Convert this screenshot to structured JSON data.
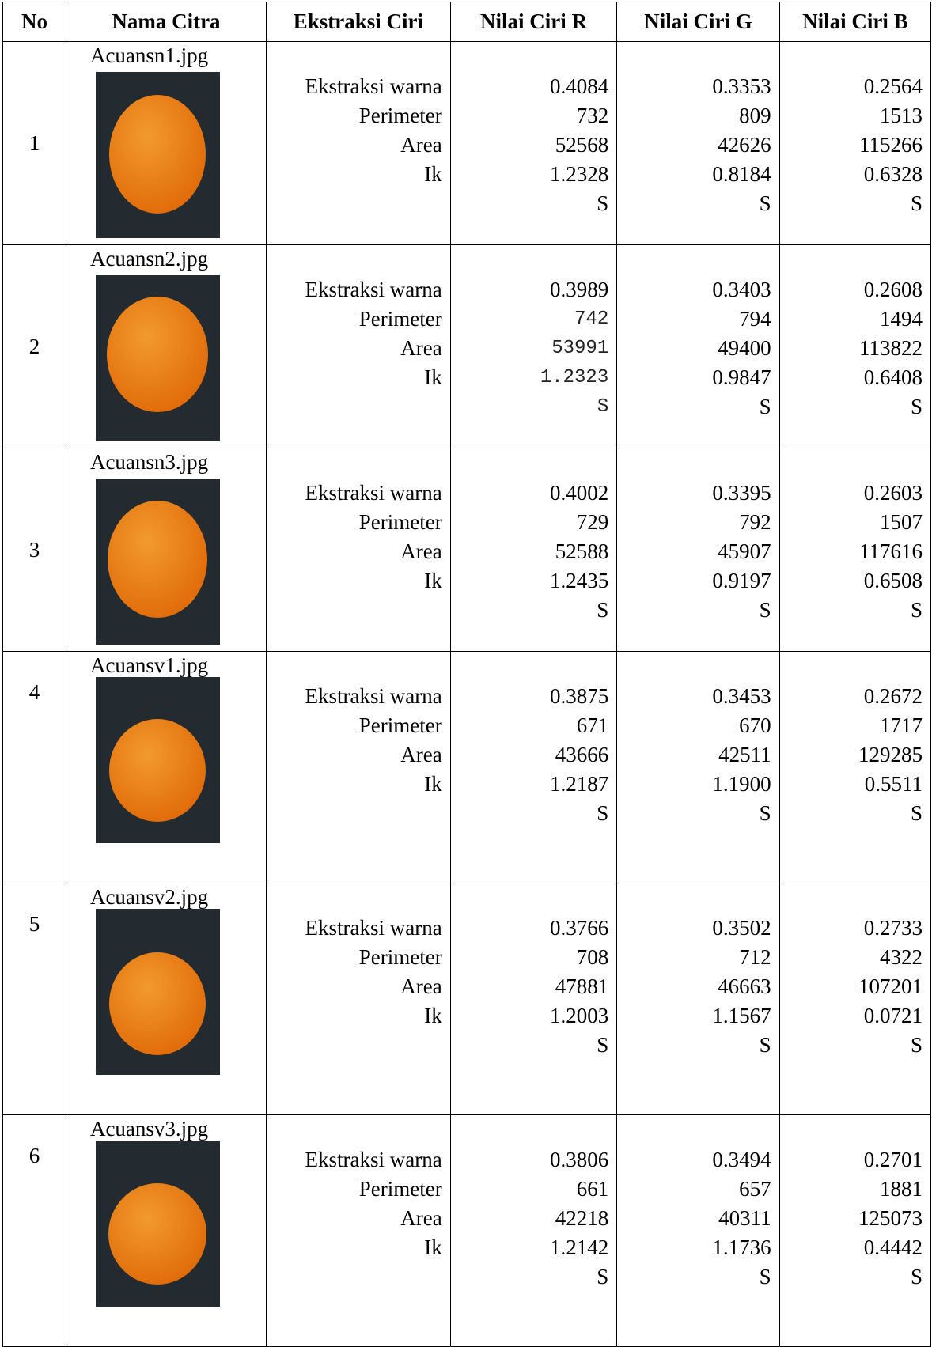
{
  "headers": [
    "No",
    "Nama Citra",
    "Ekstraksi Ciri",
    "Nilai Ciri R",
    "Nilai Ciri G",
    "Nilai Ciri B"
  ],
  "labels": [
    "Ekstraksi warna",
    "Perimeter",
    "Area",
    "Ik"
  ],
  "rows": [
    {
      "no": "1",
      "file": "Acuansn1.jpg",
      "fruit": "orange",
      "r": [
        "0.4084",
        "732",
        "52568",
        "1.2328",
        "S"
      ],
      "g": [
        "0.3353",
        "809",
        "42626",
        "0.8184",
        "S"
      ],
      "b": [
        "0.2564",
        "1513",
        "115266",
        "0.6328",
        "S"
      ]
    },
    {
      "no": "2",
      "file": "Acuansn2.jpg",
      "fruit": "orange",
      "r": [
        "0.3989",
        "742",
        "53991",
        "1.2323",
        "S"
      ],
      "g": [
        "0.3403",
        "794",
        "49400",
        "0.9847",
        "S"
      ],
      "b": [
        "0.2608",
        "1494",
        "113822",
        "0.6408",
        "S"
      ]
    },
    {
      "no": "3",
      "file": "Acuansn3.jpg",
      "fruit": "orange",
      "r": [
        "0.4002",
        "729",
        "52588",
        "1.2435",
        "S"
      ],
      "g": [
        "0.3395",
        "792",
        "45907",
        "0.9197",
        "S"
      ],
      "b": [
        "0.2603",
        "1507",
        "117616",
        "0.6508",
        "S"
      ]
    },
    {
      "no": "4",
      "file": "Acuansv1.jpg",
      "fruit": "orange",
      "r": [
        "0.3875",
        "671",
        "43666",
        "1.2187",
        "S"
      ],
      "g": [
        "0.3453",
        "670",
        "42511",
        "1.1900",
        "S"
      ],
      "b": [
        "0.2672",
        "1717",
        "129285",
        "0.5511",
        "S"
      ]
    },
    {
      "no": "5",
      "file": "Acuansv2.jpg",
      "fruit": "orange",
      "r": [
        "0.3766",
        "708",
        "47881",
        "1.2003",
        "S"
      ],
      "g": [
        "0.3502",
        "712",
        "46663",
        "1.1567",
        "S"
      ],
      "b": [
        "0.2733",
        "4322",
        "107201",
        "0.0721",
        "S"
      ]
    },
    {
      "no": "6",
      "file": "Acuansv3.jpg",
      "fruit": "orange",
      "r": [
        "0.3806",
        "661",
        "42218",
        "1.2142",
        "S"
      ],
      "g": [
        "0.3494",
        "657",
        "40311",
        "1.1736",
        "S"
      ],
      "b": [
        "0.2701",
        "1881",
        "125073",
        "0.4442",
        "S"
      ]
    }
  ],
  "colors": {
    "photo_bg": "#232a30",
    "fruit_light": "#f29a2e",
    "fruit_dark": "#e06a08"
  }
}
